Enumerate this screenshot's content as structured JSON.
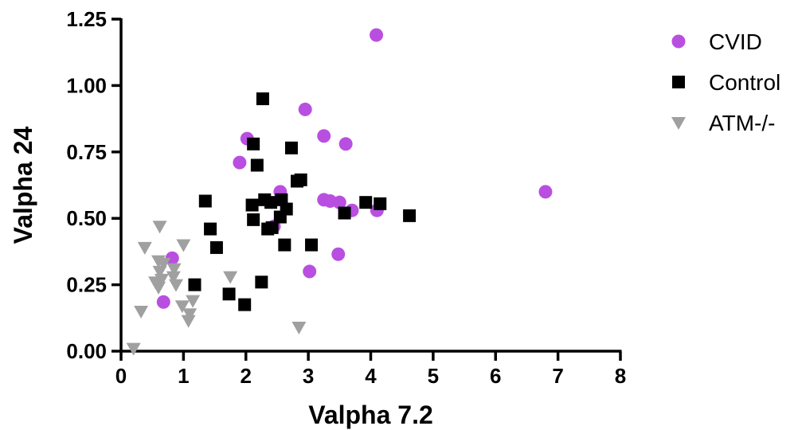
{
  "chart_data": {
    "type": "scatter",
    "xlabel": "Valpha 7.2",
    "ylabel": "Valpha 24",
    "xlim": [
      0,
      8
    ],
    "ylim": [
      0,
      1.25
    ],
    "x_ticks": [
      "0",
      "1",
      "2",
      "3",
      "4",
      "5",
      "6",
      "7",
      "8"
    ],
    "y_ticks": [
      "0.00",
      "0.25",
      "0.50",
      "0.75",
      "1.00",
      "1.25"
    ],
    "legend_position": "top-right",
    "grid": false,
    "series": [
      {
        "name": "CVID",
        "marker": "circle",
        "color": "#b94fe0",
        "points": [
          [
            4.09,
            1.19
          ],
          [
            2.95,
            0.91
          ],
          [
            3.25,
            0.81
          ],
          [
            3.6,
            0.78
          ],
          [
            2.02,
            0.8
          ],
          [
            1.9,
            0.71
          ],
          [
            6.8,
            0.6
          ],
          [
            2.55,
            0.6
          ],
          [
            3.25,
            0.57
          ],
          [
            3.35,
            0.565
          ],
          [
            3.5,
            0.56
          ],
          [
            3.7,
            0.53
          ],
          [
            4.1,
            0.53
          ],
          [
            2.45,
            0.47
          ],
          [
            3.48,
            0.365
          ],
          [
            0.82,
            0.35
          ],
          [
            3.02,
            0.3
          ],
          [
            0.68,
            0.185
          ]
        ]
      },
      {
        "name": "Control",
        "marker": "square",
        "color": "#000000",
        "points": [
          [
            2.27,
            0.95
          ],
          [
            2.12,
            0.78
          ],
          [
            2.73,
            0.765
          ],
          [
            2.18,
            0.7
          ],
          [
            2.82,
            0.64
          ],
          [
            2.88,
            0.645
          ],
          [
            1.35,
            0.565
          ],
          [
            2.3,
            0.57
          ],
          [
            2.1,
            0.55
          ],
          [
            2.57,
            0.57
          ],
          [
            2.4,
            0.56
          ],
          [
            3.92,
            0.56
          ],
          [
            4.15,
            0.555
          ],
          [
            2.65,
            0.535
          ],
          [
            3.58,
            0.52
          ],
          [
            4.62,
            0.51
          ],
          [
            2.55,
            0.505
          ],
          [
            2.12,
            0.495
          ],
          [
            2.42,
            0.465
          ],
          [
            1.43,
            0.46
          ],
          [
            2.35,
            0.46
          ],
          [
            3.05,
            0.4
          ],
          [
            2.62,
            0.4
          ],
          [
            1.53,
            0.39
          ],
          [
            2.25,
            0.26
          ],
          [
            1.18,
            0.25
          ],
          [
            1.73,
            0.215
          ],
          [
            1.98,
            0.175
          ]
        ]
      },
      {
        "name": "ATM-/-",
        "marker": "triangle-down",
        "color": "#a0a0a0",
        "points": [
          [
            0.62,
            0.47
          ],
          [
            0.38,
            0.39
          ],
          [
            1.0,
            0.4
          ],
          [
            0.6,
            0.34
          ],
          [
            0.68,
            0.33
          ],
          [
            0.85,
            0.31
          ],
          [
            0.62,
            0.3
          ],
          [
            0.84,
            0.28
          ],
          [
            1.75,
            0.28
          ],
          [
            0.65,
            0.27
          ],
          [
            0.55,
            0.26
          ],
          [
            0.88,
            0.25
          ],
          [
            0.6,
            0.24
          ],
          [
            1.15,
            0.19
          ],
          [
            0.98,
            0.17
          ],
          [
            0.32,
            0.15
          ],
          [
            1.1,
            0.14
          ],
          [
            1.08,
            0.115
          ],
          [
            2.85,
            0.09
          ],
          [
            0.2,
            0.01
          ]
        ]
      }
    ]
  }
}
